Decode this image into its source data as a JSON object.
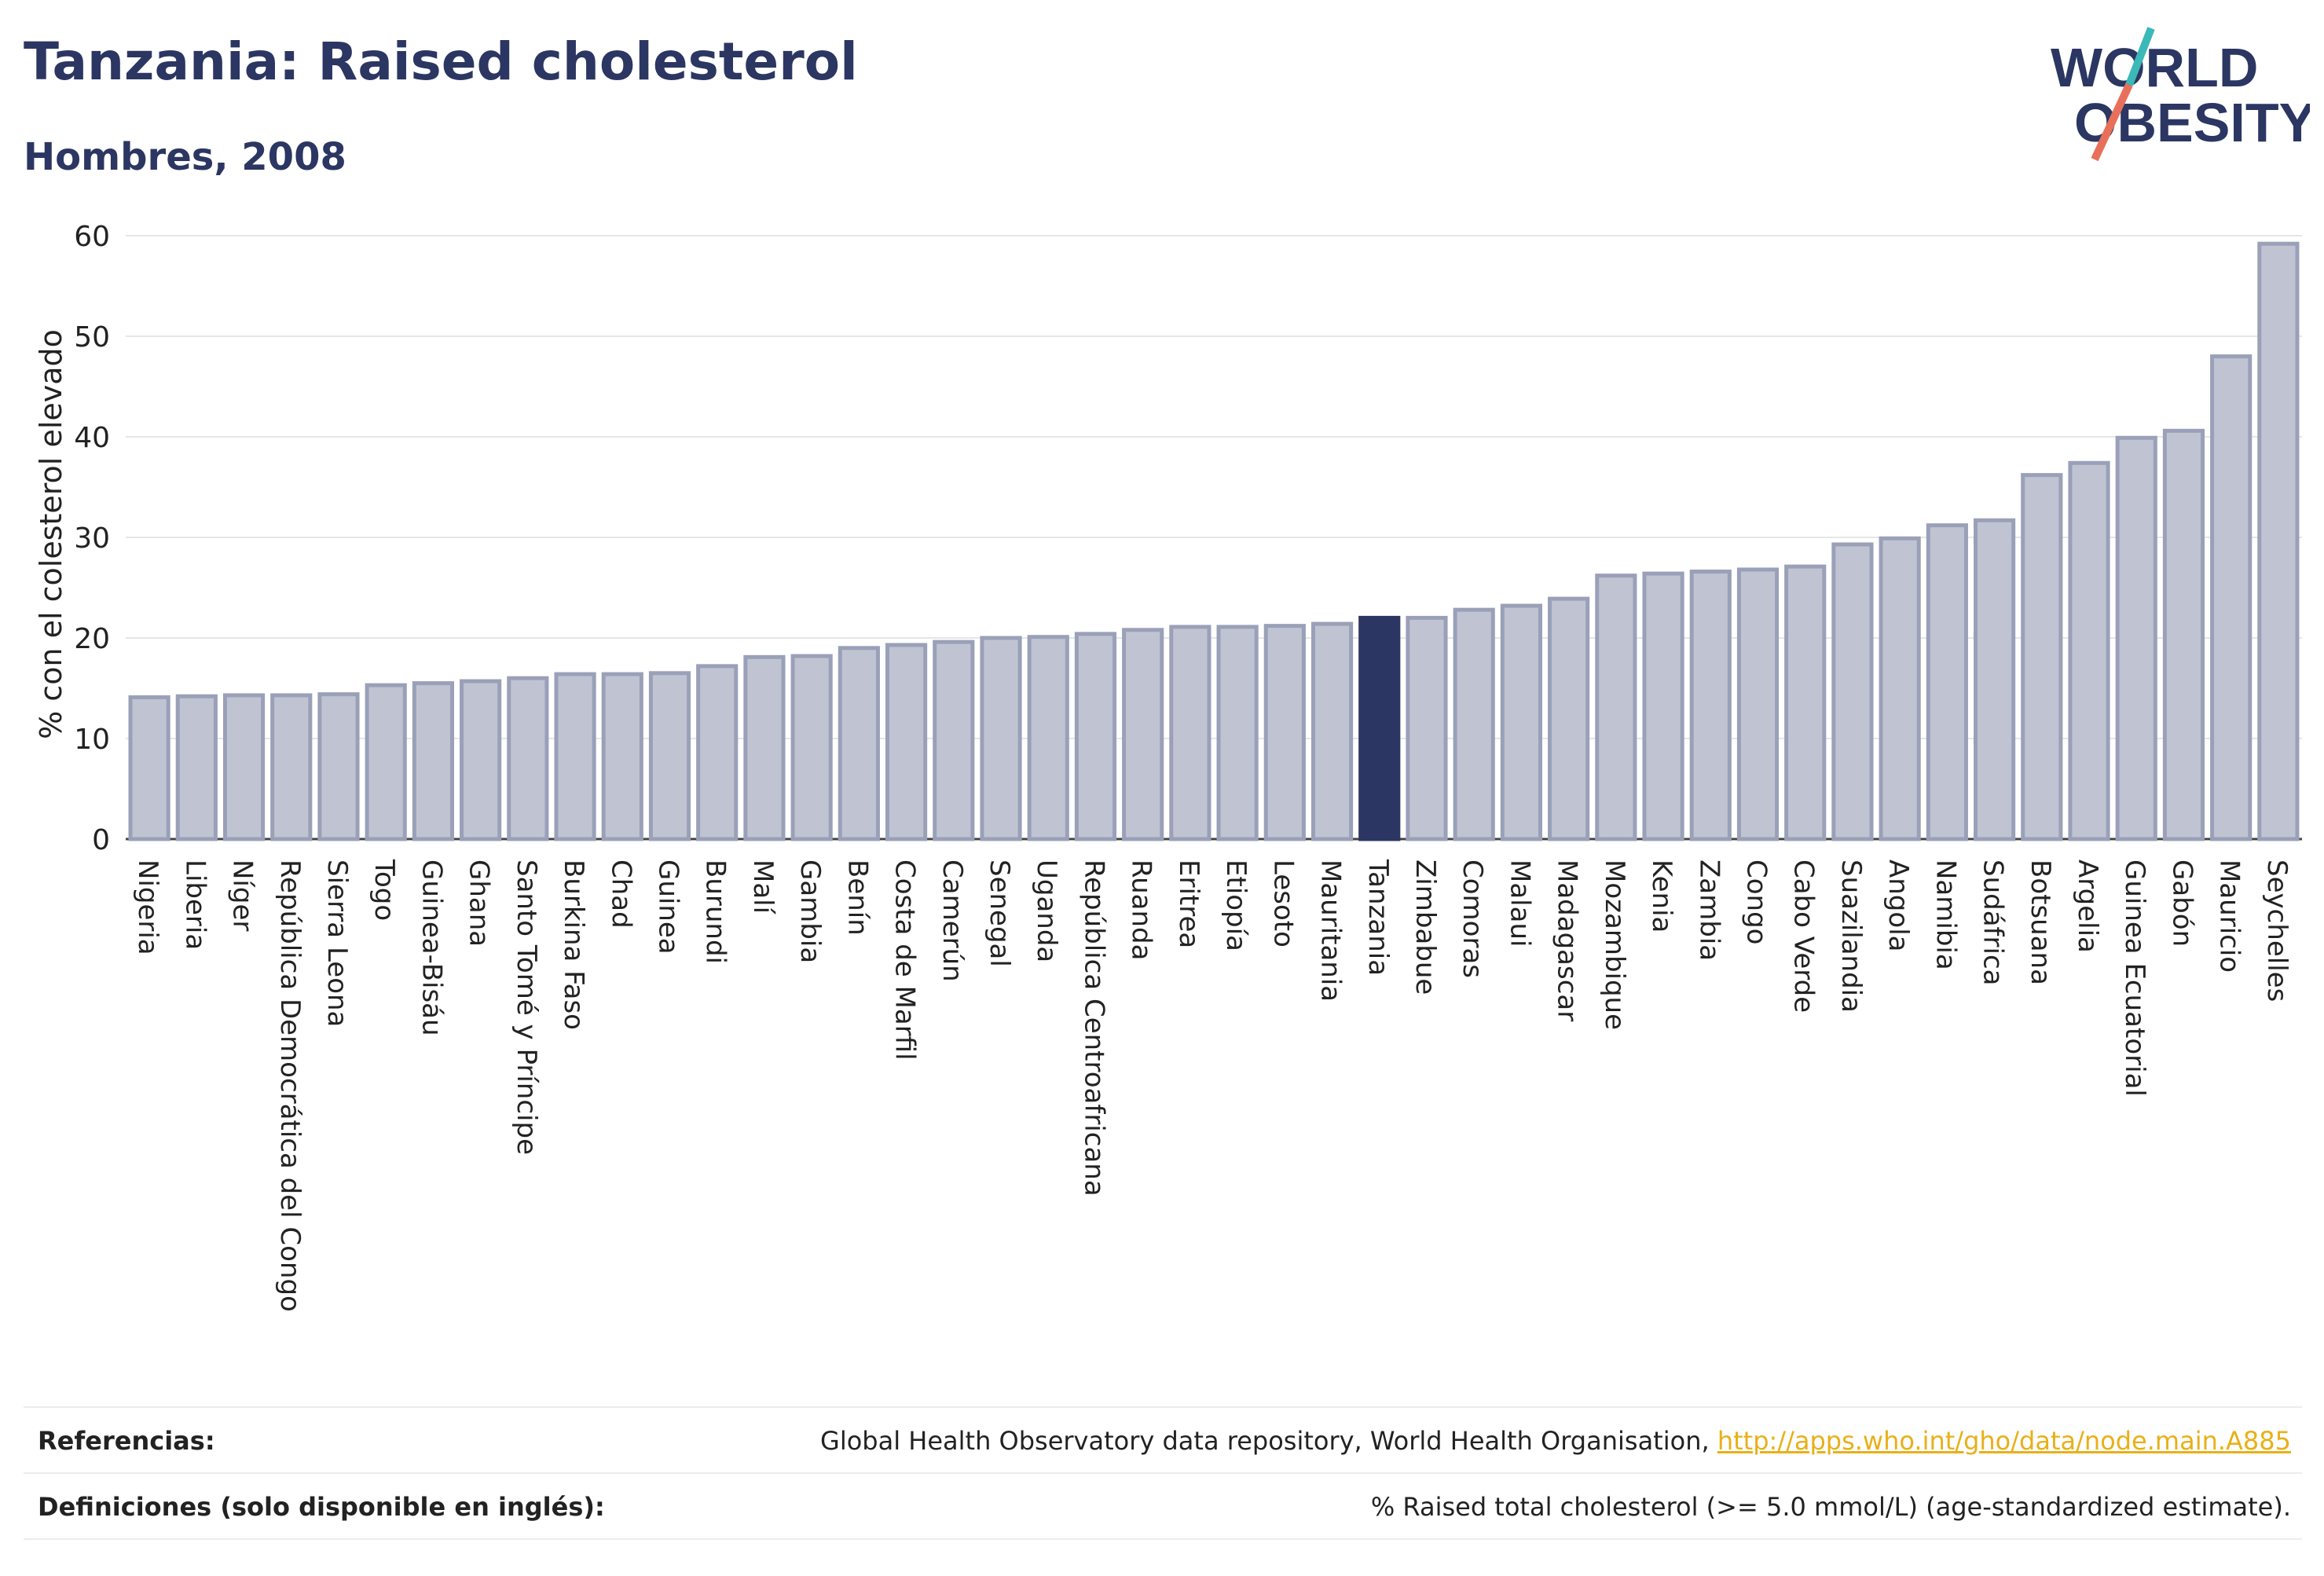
{
  "header": {
    "title": "Tanzania: Raised cholesterol",
    "subtitle": "Hombres, 2008"
  },
  "logo": {
    "line1": "WORLD",
    "line2": "OBESITY"
  },
  "colors": {
    "bar": "#c0c4d2",
    "bar_border": "#9aa0b8",
    "highlight": "#2b3662",
    "title": "#2b3662",
    "grid": "#e6e6e6",
    "link": "#e8b018",
    "logo_slash_teal": "#3bb8b8",
    "logo_slash_red": "#e8705a"
  },
  "chart_data": {
    "type": "bar",
    "ylabel": "% con el colesterol elevado",
    "xlabel": "",
    "ylim": [
      0,
      60
    ],
    "yticks": [
      0,
      10,
      20,
      30,
      40,
      50,
      60
    ],
    "grid": true,
    "highlight": "Tanzania",
    "categories": [
      "Nigeria",
      "Liberia",
      "Níger",
      "República Democrática del Congo",
      "Sierra Leona",
      "Togo",
      "Guinea-Bisáu",
      "Ghana",
      "Santo Tomé y Príncipe",
      "Burkina Faso",
      "Chad",
      "Guinea",
      "Burundi",
      "Malí",
      "Gambia",
      "Benín",
      "Costa de Marfil",
      "Camerún",
      "Senegal",
      "Uganda",
      "República Centroafricana",
      "Ruanda",
      "Eritrea",
      "Etiopía",
      "Lesoto",
      "Mauritania",
      "Tanzania",
      "Zimbabue",
      "Comoras",
      "Malaui",
      "Madagascar",
      "Mozambique",
      "Kenia",
      "Zambia",
      "Congo",
      "Cabo Verde",
      "Suazilandia",
      "Angola",
      "Namibia",
      "Sudáfrica",
      "Botsuana",
      "Argelia",
      "Guinea Ecuatorial",
      "Gabón",
      "Mauricio",
      "Seychelles"
    ],
    "values": [
      14.1,
      14.2,
      14.3,
      14.3,
      14.4,
      15.3,
      15.5,
      15.7,
      16.0,
      16.4,
      16.4,
      16.5,
      17.2,
      18.1,
      18.2,
      19.0,
      19.3,
      19.6,
      20.0,
      20.1,
      20.4,
      20.8,
      21.1,
      21.1,
      21.2,
      21.4,
      22.0,
      22.0,
      22.8,
      23.2,
      23.9,
      26.2,
      26.4,
      26.6,
      26.8,
      27.1,
      29.3,
      29.9,
      31.2,
      31.7,
      36.2,
      37.4,
      39.9,
      40.6,
      48.0,
      59.2
    ]
  },
  "footer": {
    "references_label": "Referencias:",
    "references_text": "Global Health Observatory data repository, World Health Organisation, ",
    "references_link": "http://apps.who.int/gho/data/node.main.A885",
    "definitions_label": "Definiciones (solo disponible en inglés):",
    "definitions_text": "% Raised total cholesterol (>= 5.0 mmol/L) (age-standardized estimate)."
  }
}
